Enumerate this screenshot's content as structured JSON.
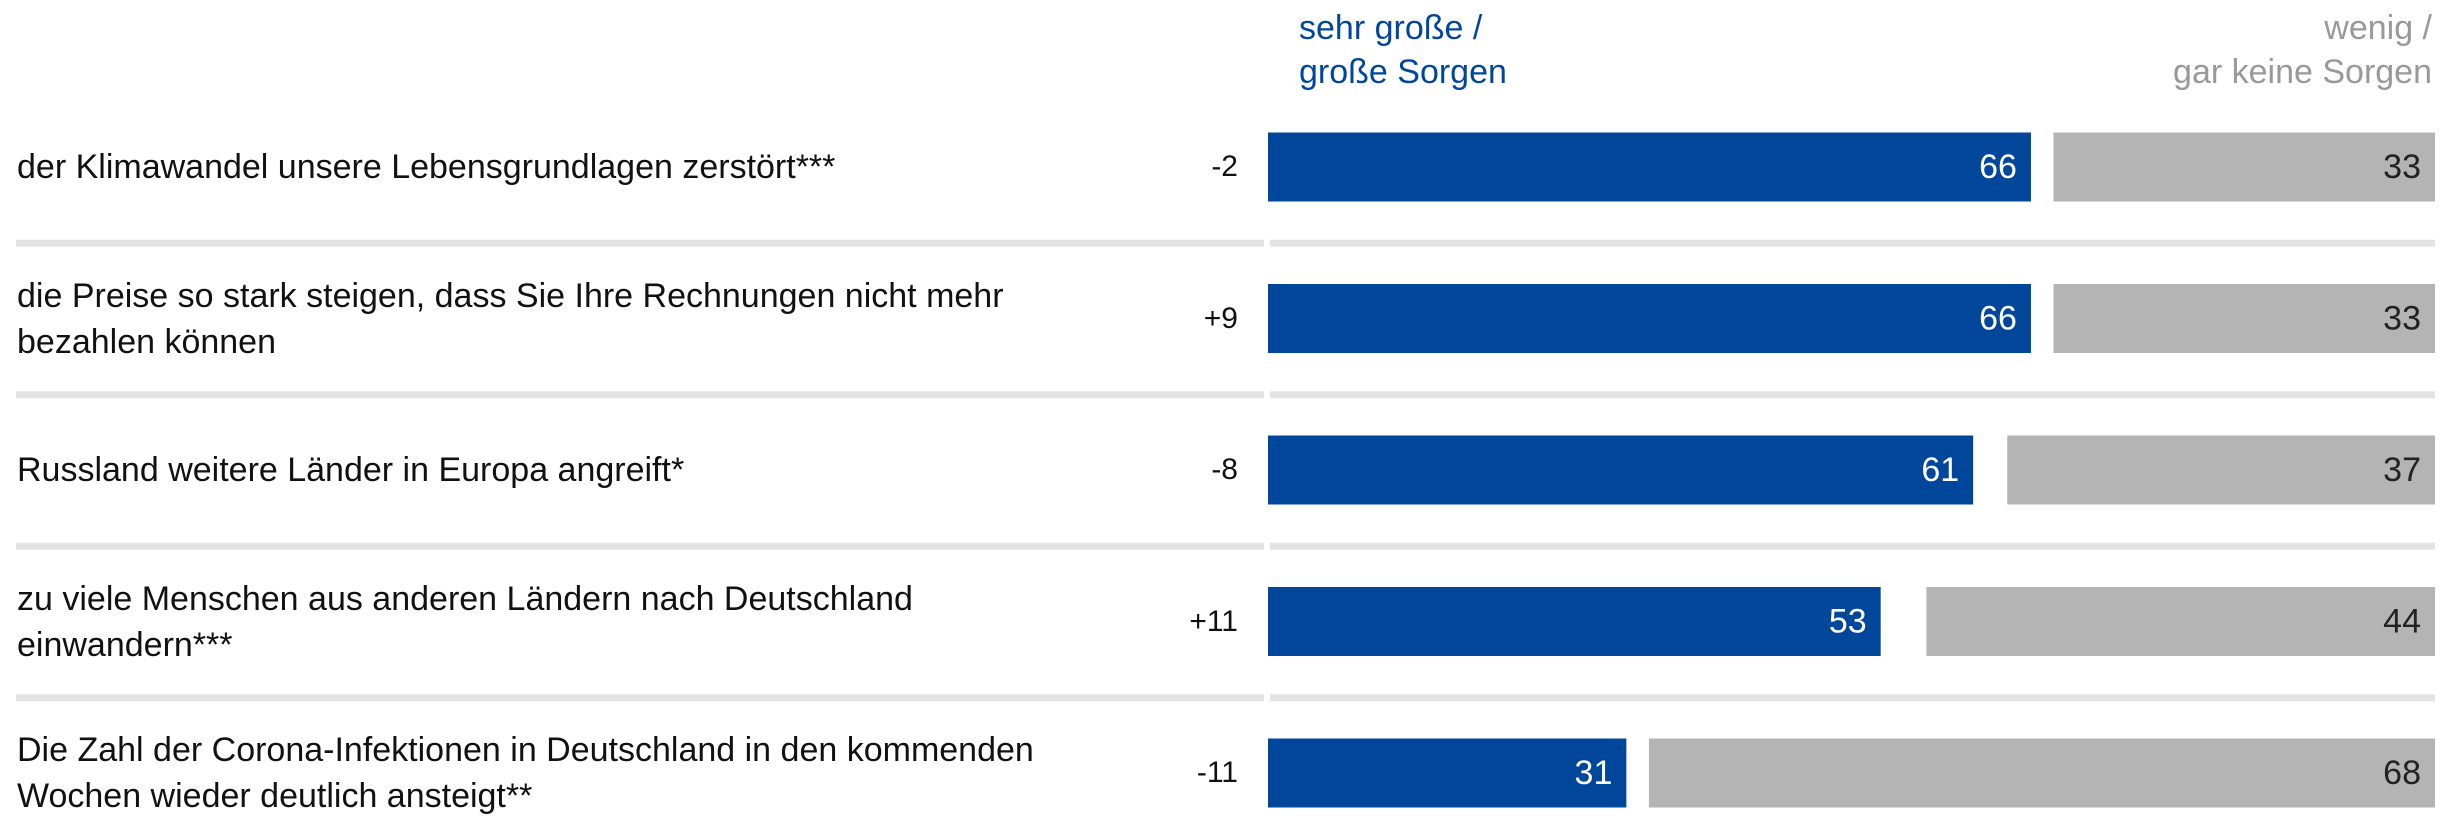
{
  "chart_data": {
    "type": "bar",
    "orientation": "horizontal",
    "stacked": true,
    "categories": [
      "der Klimawandel unsere Lebensgrundlagen zerstört***",
      "die Preise so stark steigen, dass Sie Ihre Rechnungen nicht mehr\nbezahlen können",
      "Russland weitere Länder in Europa angreift*",
      "zu viele Menschen aus anderen Ländern nach Deutschland\neinwandern***",
      "Die Zahl der Corona-Infektionen in Deutschland in den kommenden\nWochen wieder deutlich ansteigt**"
    ],
    "changes": [
      "-2",
      "+9",
      "-8",
      "+11",
      "-11"
    ],
    "series": [
      {
        "name": "sehr große /\ngroße Sorgen",
        "color": "#00479b",
        "values": [
          66,
          66,
          61,
          53,
          31
        ]
      },
      {
        "name": "wenig /\ngar keine Sorgen",
        "color": "#b4b4b4",
        "values": [
          33,
          33,
          37,
          44,
          68
        ]
      }
    ],
    "xlim": [
      0,
      100
    ]
  }
}
